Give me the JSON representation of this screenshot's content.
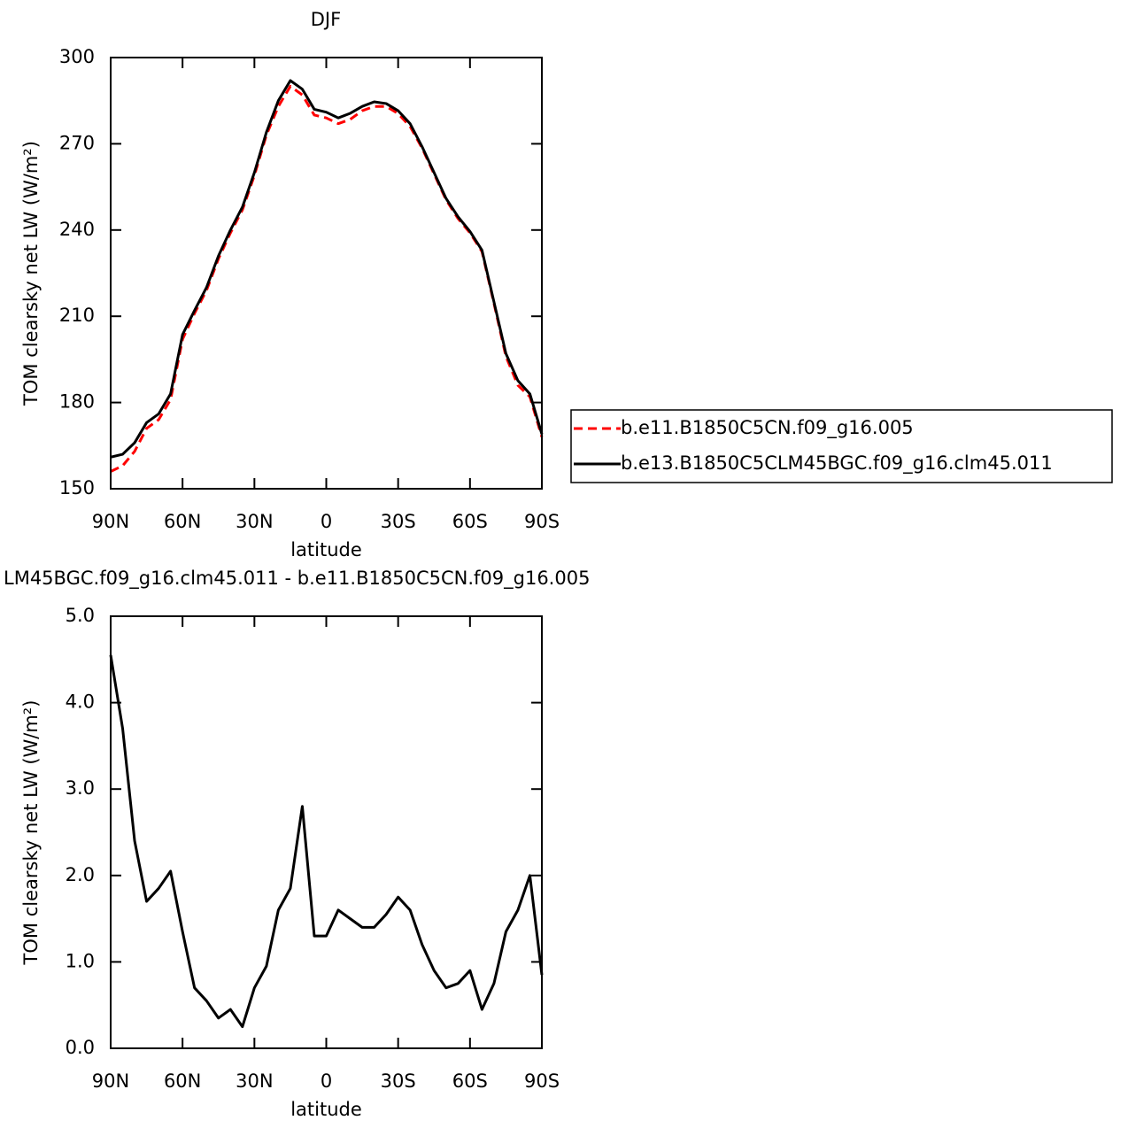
{
  "chart_data": [
    {
      "type": "line",
      "title": "DJF",
      "xlabel": "latitude",
      "ylabel": "TOM clearsky net LW (W/m²)",
      "x": [
        90,
        85,
        80,
        75,
        70,
        65,
        60,
        55,
        50,
        45,
        40,
        35,
        30,
        25,
        20,
        15,
        10,
        5,
        0,
        -5,
        -10,
        -15,
        -20,
        -25,
        -30,
        -35,
        -40,
        -45,
        -50,
        -55,
        -60,
        -65,
        -70,
        -75,
        -80,
        -85,
        -90
      ],
      "series": [
        {
          "name": "b.e11.B1850C5CN.f09_g16.005",
          "color": "#ff0000",
          "linestyle": "dashed",
          "values": [
            156,
            158,
            163,
            171,
            174,
            181,
            202,
            211,
            219,
            230,
            239,
            247,
            259,
            273,
            283,
            290,
            287,
            280,
            279,
            277,
            278.5,
            281.5,
            283,
            283,
            280.5,
            276,
            268.5,
            259.5,
            250.5,
            244,
            239,
            232.5,
            214.5,
            196,
            186,
            182,
            168
          ]
        },
        {
          "name": "b.e13.B1850C5CLM45BGC.f09_g16.clm45.011",
          "color": "#000000",
          "linestyle": "solid",
          "values": [
            161,
            162,
            166,
            173,
            176,
            183,
            203.6,
            212,
            220,
            231,
            240,
            248,
            260,
            274,
            285,
            292,
            289,
            282,
            281,
            279,
            280.6,
            283,
            284.6,
            284,
            281.5,
            277,
            269,
            260,
            251,
            244.6,
            239.5,
            233,
            215,
            197,
            187.6,
            183,
            169
          ]
        }
      ],
      "xlim": [
        90,
        -90
      ],
      "xticks": [
        {
          "value": 90,
          "label": "90N"
        },
        {
          "value": 60,
          "label": "60N"
        },
        {
          "value": 30,
          "label": "30N"
        },
        0,
        {
          "value": -30,
          "label": "30S"
        },
        {
          "value": -60,
          "label": "60S"
        },
        {
          "value": -90,
          "label": "90S"
        }
      ],
      "ylim": [
        150,
        300
      ],
      "yticks": [
        150,
        180,
        210,
        240,
        270,
        300
      ],
      "legend": "right"
    },
    {
      "type": "line",
      "title": "LM45BGC.f09_g16.clm45.011 - b.e11.B1850C5CN.f09_g16.005",
      "xlabel": "latitude",
      "ylabel": "TOM clearsky net LW (W/m²)",
      "x": [
        90,
        85,
        80,
        75,
        70,
        65,
        60,
        55,
        50,
        45,
        40,
        35,
        30,
        25,
        20,
        15,
        10,
        5,
        0,
        -5,
        -10,
        -15,
        -20,
        -25,
        -30,
        -35,
        -40,
        -45,
        -50,
        -55,
        -60,
        -65,
        -70,
        -75,
        -80,
        -85,
        -90
      ],
      "color": "#000000",
      "values": [
        4.55,
        3.7,
        2.4,
        1.7,
        1.85,
        2.05,
        1.35,
        0.7,
        0.55,
        0.35,
        0.45,
        0.25,
        0.7,
        0.95,
        1.6,
        1.85,
        2.8,
        1.3,
        1.3,
        1.6,
        1.5,
        1.4,
        1.4,
        1.55,
        1.75,
        1.6,
        1.2,
        0.9,
        0.7,
        0.75,
        0.9,
        0.45,
        0.75,
        1.35,
        1.6,
        2.0,
        0.85
      ],
      "xlim": [
        90,
        -90
      ],
      "xticks": [
        {
          "value": 90,
          "label": "90N"
        },
        {
          "value": 60,
          "label": "60N"
        },
        {
          "value": 30,
          "label": "30N"
        },
        0,
        {
          "value": -30,
          "label": "30S"
        },
        {
          "value": -60,
          "label": "60S"
        },
        {
          "value": -90,
          "label": "90S"
        }
      ],
      "ylim": [
        0,
        5
      ],
      "yticks": [
        {
          "value": 0,
          "label": "0.0"
        },
        {
          "value": 1,
          "label": "1.0"
        },
        {
          "value": 2,
          "label": "2.0"
        },
        {
          "value": 3,
          "label": "3.0"
        },
        {
          "value": 4,
          "label": "4.0"
        },
        {
          "value": 5,
          "label": "5.0"
        }
      ]
    }
  ]
}
